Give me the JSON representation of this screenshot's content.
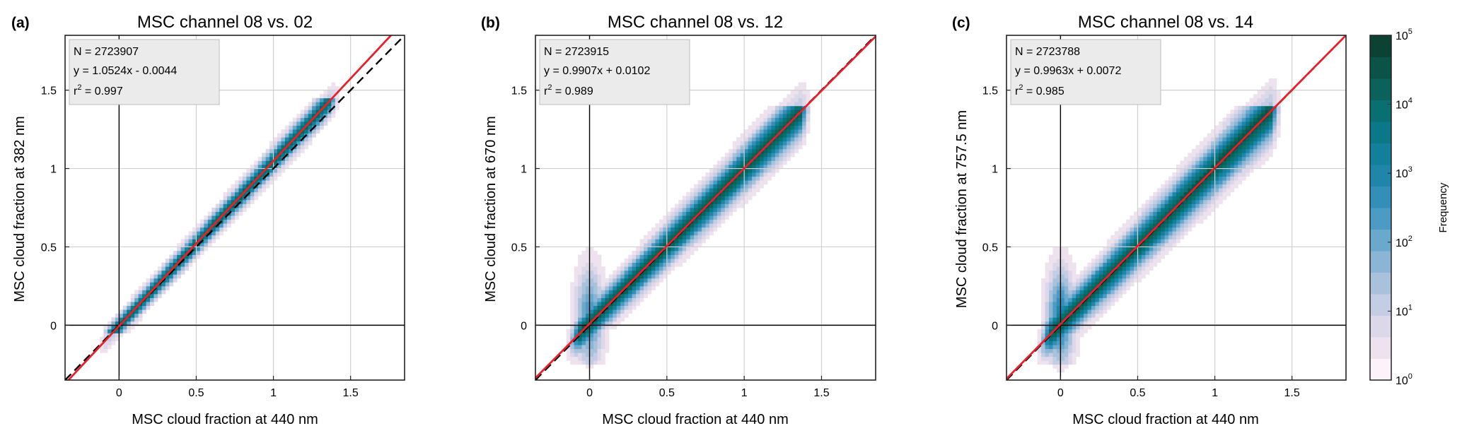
{
  "chart_data": [
    {
      "type": "heatmap",
      "panel_label": "(a)",
      "title": "MSC channel 08 vs. 02",
      "xlabel": "MSC cloud fraction at 440 nm",
      "ylabel": "MSC cloud fraction at 382 nm",
      "xlim": [
        -0.35,
        1.85
      ],
      "ylim": [
        -0.35,
        1.85
      ],
      "xticks": [
        0,
        0.5,
        1,
        1.5
      ],
      "xtick_labels": [
        "0",
        "0.5",
        "1",
        "1.5"
      ],
      "yticks": [
        0,
        0.5,
        1,
        1.5
      ],
      "ytick_labels": [
        "0",
        "0.5",
        "1",
        "1.5"
      ],
      "grid": true,
      "stats": {
        "n_text": "N = 2723907",
        "fit_text": "y = 1.0524x - 0.0044",
        "r2_prefix": "r",
        "r2_sup": "2",
        "r2_text": " = 0.997"
      },
      "fit_line": {
        "slope": 1.0524,
        "intercept": -0.0044,
        "color": "#e8202a"
      },
      "one_to_one_line": {
        "slope": 1,
        "intercept": 0,
        "style": "dashed",
        "color": "#000000"
      },
      "density": {
        "x_min": -0.05,
        "x_max": 1.35,
        "y_extent": [
          -0.05,
          1.45
        ],
        "spread": 0.04,
        "low_blob": 0,
        "peak_log": 4.3
      }
    },
    {
      "type": "heatmap",
      "panel_label": "(b)",
      "title": "MSC channel 08 vs. 12",
      "xlabel": "MSC cloud fraction at 440 nm",
      "ylabel": "MSC cloud fraction at 670 nm",
      "xlim": [
        -0.35,
        1.85
      ],
      "ylim": [
        -0.35,
        1.85
      ],
      "xticks": [
        0,
        0.5,
        1,
        1.5
      ],
      "xtick_labels": [
        "0",
        "0.5",
        "1",
        "1.5"
      ],
      "yticks": [
        0,
        0.5,
        1,
        1.5
      ],
      "ytick_labels": [
        "0",
        "0.5",
        "1",
        "1.5"
      ],
      "grid": true,
      "stats": {
        "n_text": "N = 2723915",
        "fit_text": "y = 0.9907x + 0.0102",
        "r2_prefix": "r",
        "r2_sup": "2",
        "r2_text": " = 0.989"
      },
      "fit_line": {
        "slope": 0.9907,
        "intercept": 0.0102,
        "color": "#e8202a"
      },
      "one_to_one_line": {
        "slope": 1,
        "intercept": 0,
        "style": "dashed",
        "color": "#000000"
      },
      "density": {
        "x_min": -0.05,
        "x_max": 1.35,
        "y_extent": [
          -0.25,
          1.4
        ],
        "spread": 0.07,
        "low_blob": 1,
        "peak_log": 4.6
      }
    },
    {
      "type": "heatmap",
      "panel_label": "(c)",
      "title": "MSC channel 08 vs. 14",
      "xlabel": "MSC cloud fraction at 440 nm",
      "ylabel": "MSC cloud fraction at 757.5 nm",
      "xlim": [
        -0.35,
        1.85
      ],
      "ylim": [
        -0.35,
        1.85
      ],
      "xticks": [
        0,
        0.5,
        1,
        1.5
      ],
      "xtick_labels": [
        "0",
        "0.5",
        "1",
        "1.5"
      ],
      "yticks": [
        0,
        0.5,
        1,
        1.5
      ],
      "ytick_labels": [
        "0",
        "0.5",
        "1",
        "1.5"
      ],
      "grid": true,
      "stats": {
        "n_text": "N = 2723788",
        "fit_text": "y = 0.9963x + 0.0072",
        "r2_prefix": "r",
        "r2_sup": "2",
        "r2_text": " = 0.985"
      },
      "fit_line": {
        "slope": 0.9963,
        "intercept": 0.0072,
        "color": "#e8202a"
      },
      "one_to_one_line": {
        "slope": 1,
        "intercept": 0,
        "style": "dashed",
        "color": "#000000"
      },
      "density": {
        "x_min": -0.05,
        "x_max": 1.35,
        "y_extent": [
          -0.25,
          1.4
        ],
        "spread": 0.08,
        "low_blob": 1.2,
        "peak_log": 4.6
      }
    }
  ],
  "colorbar": {
    "label": "Frequency",
    "scale": "log",
    "range": [
      1,
      100000
    ],
    "ticks": [
      {
        "base": "10",
        "exp": "0"
      },
      {
        "base": "10",
        "exp": "1"
      },
      {
        "base": "10",
        "exp": "2"
      },
      {
        "base": "10",
        "exp": "3"
      },
      {
        "base": "10",
        "exp": "4"
      },
      {
        "base": "10",
        "exp": "5"
      }
    ],
    "colors": [
      "#fcf3fa",
      "#efe2ef",
      "#dcd7e9",
      "#c4cde3",
      "#a9c2dc",
      "#8ab5d4",
      "#6aa8cc",
      "#4b9bc4",
      "#338fb8",
      "#1f86aa",
      "#127f9b",
      "#0a7888",
      "#087071",
      "#0b625b",
      "#0c5347",
      "#0b4234"
    ]
  },
  "colors": {
    "fit": "#e8202a",
    "grid": "#d0d0d0",
    "stats_box": "#ebebeb"
  }
}
